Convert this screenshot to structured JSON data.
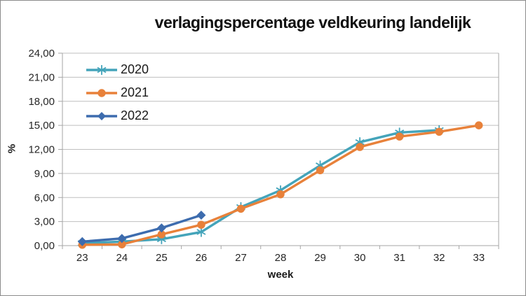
{
  "window": {
    "background": "#ffffff",
    "border_color": "#8c8c8c"
  },
  "chart_data": {
    "type": "line",
    "title": "verlagingspercentage veldkeuring landelijk",
    "xlabel": "week",
    "ylabel": "%",
    "x": [
      23,
      24,
      25,
      26,
      27,
      28,
      29,
      30,
      31,
      32,
      33
    ],
    "ylim": [
      0,
      24
    ],
    "ytick_step": 3,
    "ytick_labels": [
      "0,00",
      "3,00",
      "6,00",
      "9,00",
      "12,00",
      "15,00",
      "18,00",
      "21,00",
      "24,00"
    ],
    "grid": true,
    "gridline_color": "#bfbfbf",
    "axis_color": "#a6a6a6",
    "tick_label_color": "#262626",
    "legend_position": "top-left-inside",
    "series": [
      {
        "name": "2020",
        "color": "#44a4ba",
        "marker": "star",
        "values": [
          0.3,
          0.5,
          0.8,
          1.7,
          4.8,
          6.9,
          10.0,
          12.9,
          14.1,
          14.4,
          null
        ]
      },
      {
        "name": "2021",
        "color": "#e8813a",
        "marker": "circle",
        "values": [
          0.1,
          0.15,
          1.4,
          2.6,
          4.6,
          6.4,
          9.4,
          12.3,
          13.6,
          14.2,
          15.0
        ]
      },
      {
        "name": "2022",
        "color": "#3d6cae",
        "marker": "diamond",
        "values": [
          0.5,
          0.9,
          2.2,
          3.8,
          null,
          null,
          null,
          null,
          null,
          null,
          null
        ]
      }
    ]
  }
}
